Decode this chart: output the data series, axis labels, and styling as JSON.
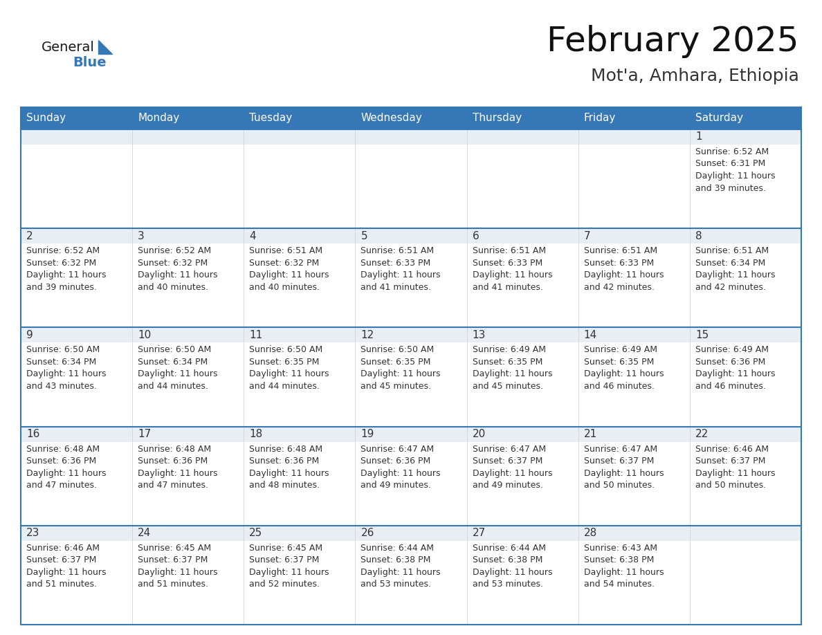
{
  "title": "February 2025",
  "subtitle": "Mot'a, Amhara, Ethiopia",
  "header_color": "#3578b5",
  "header_text_color": "#ffffff",
  "cell_top_bg": "#e8eef4",
  "cell_body_bg": "#ffffff",
  "border_color": "#3578b5",
  "text_color": "#333333",
  "day_names": [
    "Sunday",
    "Monday",
    "Tuesday",
    "Wednesday",
    "Thursday",
    "Friday",
    "Saturday"
  ],
  "days": [
    {
      "day": 1,
      "col": 6,
      "row": 0,
      "sunrise": "6:52 AM",
      "sunset": "6:31 PM",
      "daylight_hours": 11,
      "daylight_minutes": 39
    },
    {
      "day": 2,
      "col": 0,
      "row": 1,
      "sunrise": "6:52 AM",
      "sunset": "6:32 PM",
      "daylight_hours": 11,
      "daylight_minutes": 39
    },
    {
      "day": 3,
      "col": 1,
      "row": 1,
      "sunrise": "6:52 AM",
      "sunset": "6:32 PM",
      "daylight_hours": 11,
      "daylight_minutes": 40
    },
    {
      "day": 4,
      "col": 2,
      "row": 1,
      "sunrise": "6:51 AM",
      "sunset": "6:32 PM",
      "daylight_hours": 11,
      "daylight_minutes": 40
    },
    {
      "day": 5,
      "col": 3,
      "row": 1,
      "sunrise": "6:51 AM",
      "sunset": "6:33 PM",
      "daylight_hours": 11,
      "daylight_minutes": 41
    },
    {
      "day": 6,
      "col": 4,
      "row": 1,
      "sunrise": "6:51 AM",
      "sunset": "6:33 PM",
      "daylight_hours": 11,
      "daylight_minutes": 41
    },
    {
      "day": 7,
      "col": 5,
      "row": 1,
      "sunrise": "6:51 AM",
      "sunset": "6:33 PM",
      "daylight_hours": 11,
      "daylight_minutes": 42
    },
    {
      "day": 8,
      "col": 6,
      "row": 1,
      "sunrise": "6:51 AM",
      "sunset": "6:34 PM",
      "daylight_hours": 11,
      "daylight_minutes": 42
    },
    {
      "day": 9,
      "col": 0,
      "row": 2,
      "sunrise": "6:50 AM",
      "sunset": "6:34 PM",
      "daylight_hours": 11,
      "daylight_minutes": 43
    },
    {
      "day": 10,
      "col": 1,
      "row": 2,
      "sunrise": "6:50 AM",
      "sunset": "6:34 PM",
      "daylight_hours": 11,
      "daylight_minutes": 44
    },
    {
      "day": 11,
      "col": 2,
      "row": 2,
      "sunrise": "6:50 AM",
      "sunset": "6:35 PM",
      "daylight_hours": 11,
      "daylight_minutes": 44
    },
    {
      "day": 12,
      "col": 3,
      "row": 2,
      "sunrise": "6:50 AM",
      "sunset": "6:35 PM",
      "daylight_hours": 11,
      "daylight_minutes": 45
    },
    {
      "day": 13,
      "col": 4,
      "row": 2,
      "sunrise": "6:49 AM",
      "sunset": "6:35 PM",
      "daylight_hours": 11,
      "daylight_minutes": 45
    },
    {
      "day": 14,
      "col": 5,
      "row": 2,
      "sunrise": "6:49 AM",
      "sunset": "6:35 PM",
      "daylight_hours": 11,
      "daylight_minutes": 46
    },
    {
      "day": 15,
      "col": 6,
      "row": 2,
      "sunrise": "6:49 AM",
      "sunset": "6:36 PM",
      "daylight_hours": 11,
      "daylight_minutes": 46
    },
    {
      "day": 16,
      "col": 0,
      "row": 3,
      "sunrise": "6:48 AM",
      "sunset": "6:36 PM",
      "daylight_hours": 11,
      "daylight_minutes": 47
    },
    {
      "day": 17,
      "col": 1,
      "row": 3,
      "sunrise": "6:48 AM",
      "sunset": "6:36 PM",
      "daylight_hours": 11,
      "daylight_minutes": 47
    },
    {
      "day": 18,
      "col": 2,
      "row": 3,
      "sunrise": "6:48 AM",
      "sunset": "6:36 PM",
      "daylight_hours": 11,
      "daylight_minutes": 48
    },
    {
      "day": 19,
      "col": 3,
      "row": 3,
      "sunrise": "6:47 AM",
      "sunset": "6:36 PM",
      "daylight_hours": 11,
      "daylight_minutes": 49
    },
    {
      "day": 20,
      "col": 4,
      "row": 3,
      "sunrise": "6:47 AM",
      "sunset": "6:37 PM",
      "daylight_hours": 11,
      "daylight_minutes": 49
    },
    {
      "day": 21,
      "col": 5,
      "row": 3,
      "sunrise": "6:47 AM",
      "sunset": "6:37 PM",
      "daylight_hours": 11,
      "daylight_minutes": 50
    },
    {
      "day": 22,
      "col": 6,
      "row": 3,
      "sunrise": "6:46 AM",
      "sunset": "6:37 PM",
      "daylight_hours": 11,
      "daylight_minutes": 50
    },
    {
      "day": 23,
      "col": 0,
      "row": 4,
      "sunrise": "6:46 AM",
      "sunset": "6:37 PM",
      "daylight_hours": 11,
      "daylight_minutes": 51
    },
    {
      "day": 24,
      "col": 1,
      "row": 4,
      "sunrise": "6:45 AM",
      "sunset": "6:37 PM",
      "daylight_hours": 11,
      "daylight_minutes": 51
    },
    {
      "day": 25,
      "col": 2,
      "row": 4,
      "sunrise": "6:45 AM",
      "sunset": "6:37 PM",
      "daylight_hours": 11,
      "daylight_minutes": 52
    },
    {
      "day": 26,
      "col": 3,
      "row": 4,
      "sunrise": "6:44 AM",
      "sunset": "6:38 PM",
      "daylight_hours": 11,
      "daylight_minutes": 53
    },
    {
      "day": 27,
      "col": 4,
      "row": 4,
      "sunrise": "6:44 AM",
      "sunset": "6:38 PM",
      "daylight_hours": 11,
      "daylight_minutes": 53
    },
    {
      "day": 28,
      "col": 5,
      "row": 4,
      "sunrise": "6:43 AM",
      "sunset": "6:38 PM",
      "daylight_hours": 11,
      "daylight_minutes": 54
    }
  ],
  "logo_general_color": "#1a1a1a",
  "logo_blue_color": "#3578b5",
  "logo_triangle_color": "#3578b5",
  "title_fontsize": 36,
  "subtitle_fontsize": 18,
  "header_fontsize": 11,
  "day_number_fontsize": 11,
  "cell_text_fontsize": 9
}
